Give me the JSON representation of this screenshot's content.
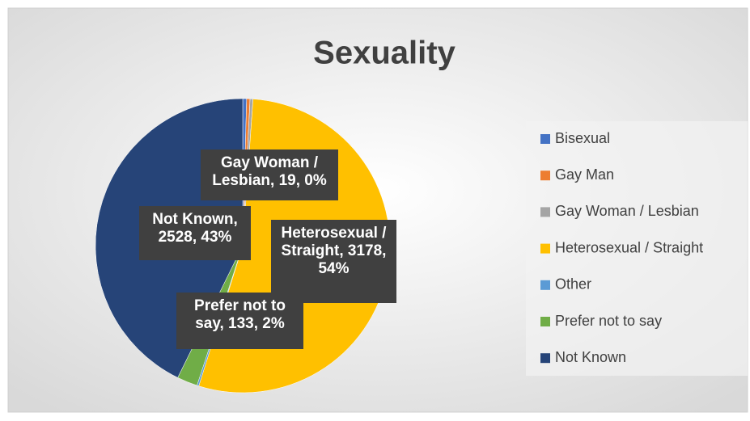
{
  "chart_data": {
    "type": "pie",
    "title": "Sexuality",
    "categories": [
      "Bisexual",
      "Gay Man",
      "Gay Woman / Lesbian",
      "Heterosexual / Straight",
      "Other",
      "Prefer not to say",
      "Not Known"
    ],
    "values": [
      25,
      22,
      19,
      3178,
      12,
      133,
      2528
    ],
    "value_labels": [
      null,
      null,
      "Gay Woman / Lesbian, 19, 0%",
      "Heterosexual / Straight, 3178, 54%",
      null,
      "Prefer not to say, 133, 2%",
      "Not Known, 2528, 43%"
    ],
    "colors": [
      "#4472c4",
      "#ed7d31",
      "#a5a5a5",
      "#ffc000",
      "#5b9bd5",
      "#70ad47",
      "#264478"
    ],
    "legend": "right"
  }
}
